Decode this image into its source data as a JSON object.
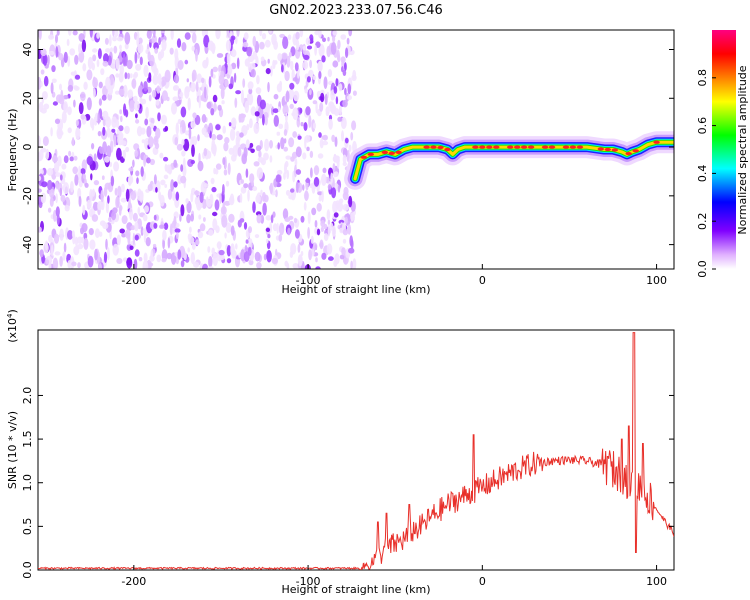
{
  "figure": {
    "title": "GN02.2023.233.07.56.C46"
  },
  "chart_data": [
    {
      "type": "heatmap",
      "title": "GN02.2023.233.07.56.C46",
      "xlabel": "Height of straight line (km)",
      "ylabel": "Frequency (Hz)",
      "xlim": [
        -255,
        110
      ],
      "ylim": [
        -50,
        48
      ],
      "x_ticks": [
        -200,
        -100,
        0,
        100
      ],
      "x_tick_labels": [
        "-200",
        "-100",
        "0",
        "100"
      ],
      "y_ticks": [
        -40,
        -20,
        0,
        20,
        40
      ],
      "y_tick_labels": [
        "-40",
        "-20",
        "0",
        "20",
        "40"
      ],
      "noise_region_x": [
        -255,
        -73
      ],
      "ridge": {
        "x": [
          -73,
          -70,
          -65,
          -60,
          -55,
          -50,
          -45,
          -40,
          -35,
          -30,
          -25,
          -20,
          -17,
          -14,
          -10,
          -5,
          0,
          10,
          20,
          30,
          40,
          50,
          60,
          70,
          75,
          80,
          83,
          86,
          90,
          95,
          100,
          110
        ],
        "freq": [
          -13,
          -5,
          -3,
          -3,
          -2,
          -3,
          -1,
          0,
          0,
          0,
          0,
          -1,
          -3,
          -1,
          0,
          0,
          0,
          0,
          0,
          0,
          0,
          0,
          0,
          -1,
          -1,
          -2,
          -3,
          -2,
          -1,
          1,
          2,
          2
        ]
      },
      "colorbar": {
        "label": "Normalized spectral amplitude",
        "range": [
          0,
          1
        ],
        "ticks": [
          0,
          0.2,
          0.4,
          0.6,
          0.8
        ],
        "tick_labels": [
          "0.0",
          "0.2",
          "0.4",
          "0.6",
          "0.8"
        ],
        "colors": [
          "#ffffff",
          "#e0b0ff",
          "#8000ff",
          "#0000ff",
          "#00ffff",
          "#00ff00",
          "#ffff00",
          "#ff8000",
          "#ff0000",
          "#ff0080"
        ]
      },
      "grid": false
    },
    {
      "type": "line",
      "xlabel": "Height of straight line (km)",
      "ylabel": "SNR (10 * v/v)",
      "y_scale_label": "(x10^4)",
      "xlim": [
        -255,
        110
      ],
      "ylim": [
        0,
        2.75
      ],
      "x_ticks": [
        -200,
        -100,
        0,
        100
      ],
      "x_tick_labels": [
        "-200",
        "-100",
        "0",
        "100"
      ],
      "y_ticks": [
        0,
        0.5,
        1,
        1.5,
        2
      ],
      "y_tick_labels": [
        "0.0",
        "0.5",
        "1.0",
        "1.5",
        "2.0"
      ],
      "line_color": "#e8302a",
      "series": [
        {
          "x": [
            -255,
            -100,
            -70,
            -62,
            -55,
            -45,
            -40,
            -35,
            -30,
            -20,
            -10,
            0,
            10,
            20,
            30,
            40,
            50,
            60,
            70,
            80,
            85,
            90,
            95,
            100,
            105,
            110
          ],
          "y": [
            0.02,
            0.02,
            0.02,
            0.1,
            0.25,
            0.35,
            0.45,
            0.5,
            0.6,
            0.75,
            0.85,
            0.95,
            1.05,
            1.15,
            1.22,
            1.25,
            1.26,
            1.25,
            1.2,
            1.1,
            1.0,
            0.95,
            0.85,
            0.7,
            0.55,
            0.42
          ]
        }
      ],
      "spikes": [
        {
          "x": -60,
          "y": 0.55
        },
        {
          "x": -55,
          "y": 0.65
        },
        {
          "x": -42,
          "y": 0.75
        },
        {
          "x": -5,
          "y": 1.55
        },
        {
          "x": 72,
          "y": 1.3
        },
        {
          "x": 80,
          "y": 1.5
        },
        {
          "x": 84,
          "y": 1.65
        },
        {
          "x": 87,
          "y": 2.72
        },
        {
          "x": 88,
          "y": 0.2
        },
        {
          "x": 92,
          "y": 1.45
        }
      ],
      "grid": false
    }
  ]
}
